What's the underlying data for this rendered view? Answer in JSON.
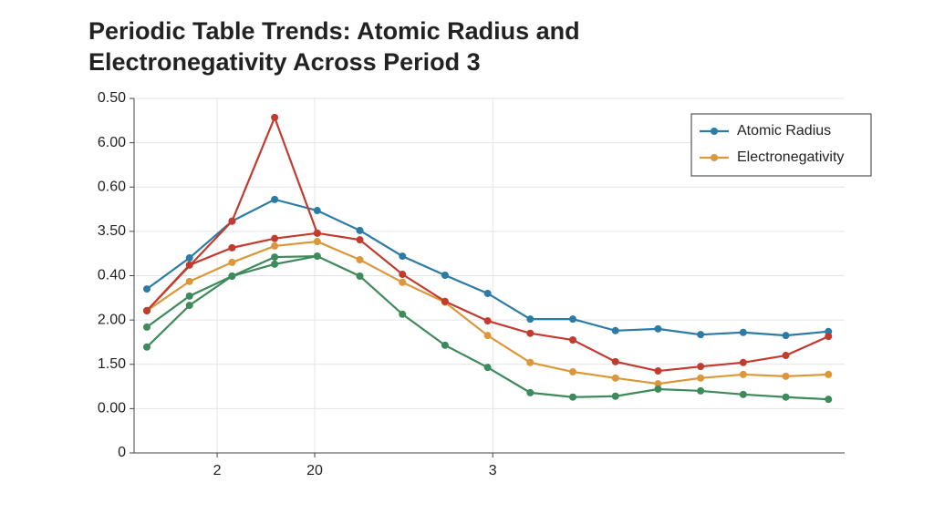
{
  "chart_data": {
    "type": "line",
    "title": [
      "Periodic Table Trends: Atomic Radius and",
      "Electronegativity  Across Period 3"
    ],
    "x": [
      0,
      1,
      2,
      3,
      4,
      5,
      6,
      7,
      8,
      9,
      10,
      11,
      12,
      13,
      14,
      15,
      16
    ],
    "xlim": [
      -0.3,
      16.38
    ],
    "xticks": [
      {
        "value": 1.65,
        "label": "2"
      },
      {
        "value": 3.94,
        "label": "20"
      },
      {
        "value": 8.12,
        "label": "3"
      }
    ],
    "ylim": [
      0,
      8
    ],
    "yticks": [
      0,
      {
        "value": 1,
        "label": "0.00"
      },
      {
        "value": 2,
        "label": "1.50"
      },
      {
        "value": 3,
        "label": "2.00"
      },
      {
        "value": 4,
        "label": "0.40"
      },
      {
        "value": 5,
        "label": "3.50"
      },
      {
        "value": 6,
        "label": "0.60"
      },
      {
        "value": 7,
        "label": "6.00"
      },
      {
        "value": 8,
        "label": "0.50"
      }
    ],
    "grid": true,
    "legend": "upper right",
    "series": [
      {
        "name": "Atomic Radius",
        "color": "#2b7ba6",
        "values": [
          3.7,
          4.4,
          5.23,
          5.72,
          5.47,
          5.02,
          4.44,
          4.01,
          3.6,
          3.02,
          3.02,
          2.76,
          2.8,
          2.67,
          2.72,
          2.65,
          2.74
        ]
      },
      {
        "name": "Electronegativity",
        "color": "#dc973a",
        "values": [
          3.21,
          3.87,
          4.3,
          4.67,
          4.77,
          4.36,
          3.85,
          3.4,
          2.65,
          2.04,
          1.83,
          1.69,
          1.56,
          1.69,
          1.77,
          1.73,
          1.77
        ]
      },
      {
        "color": "#c23b2e",
        "values": [
          3.21,
          4.24,
          4.63,
          4.84,
          4.96,
          4.81,
          4.03,
          3.42,
          2.98,
          2.7,
          2.55,
          2.06,
          1.85,
          1.95,
          2.04,
          2.2,
          2.63
        ]
      },
      {
        "color": "#c23b2e",
        "x": [
          0,
          2,
          3,
          4
        ],
        "values": [
          3.21,
          5.23,
          7.57,
          4.96
        ]
      },
      {
        "color": "#3d8a5a",
        "values": [
          2.84,
          3.54,
          3.99,
          4.26,
          4.44,
          3.99,
          3.13,
          2.43,
          1.93,
          1.36,
          1.26,
          1.28,
          1.44,
          1.4,
          1.32,
          1.26,
          1.21
        ]
      },
      {
        "color": "#3d8a5a",
        "x": [
          0,
          1,
          2,
          3,
          4
        ],
        "values": [
          2.39,
          3.33,
          3.99,
          4.42,
          4.44
        ]
      }
    ]
  }
}
